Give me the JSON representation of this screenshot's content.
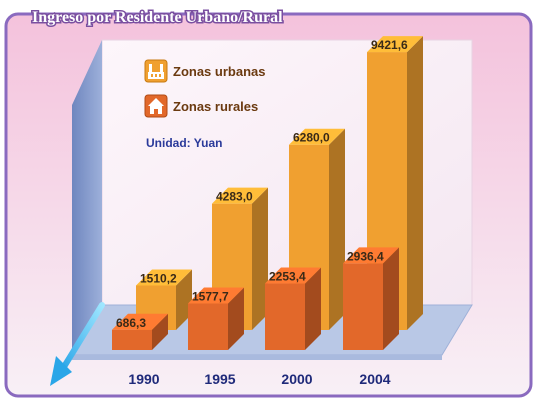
{
  "chart_data": {
    "type": "bar",
    "title": "Ingreso por Residente Urbano/Rural",
    "unit": "Unidad: Yuan",
    "categories": [
      "1990",
      "1995",
      "2000",
      "2004"
    ],
    "series": [
      {
        "name": "Zonas urbanas",
        "values": [
          1510.2,
          4283.0,
          6280.0,
          9421.6
        ],
        "labels": [
          "1510,2",
          "4283,0",
          "6280,0",
          "9421,6"
        ],
        "color": "#f0a030"
      },
      {
        "name": "Zonas rurales",
        "values": [
          686.3,
          1577.7,
          2253.4,
          2936.4
        ],
        "labels": [
          "686,3",
          "1577,7",
          "2253,4",
          "2936,4"
        ],
        "color": "#e2682a"
      }
    ],
    "ylim": [
      0,
      10000
    ],
    "grid": false,
    "legend_position": "top-left"
  },
  "colors": {
    "frame_border": "#8a6abf",
    "background": "#f2d6e8",
    "wall": "#7f96c8",
    "floor": "#b9c8e6",
    "urban": "#f0a030",
    "rural": "#e2682a"
  },
  "icons": {
    "urban_icon": "factory-icon",
    "rural_icon": "house-icon"
  }
}
